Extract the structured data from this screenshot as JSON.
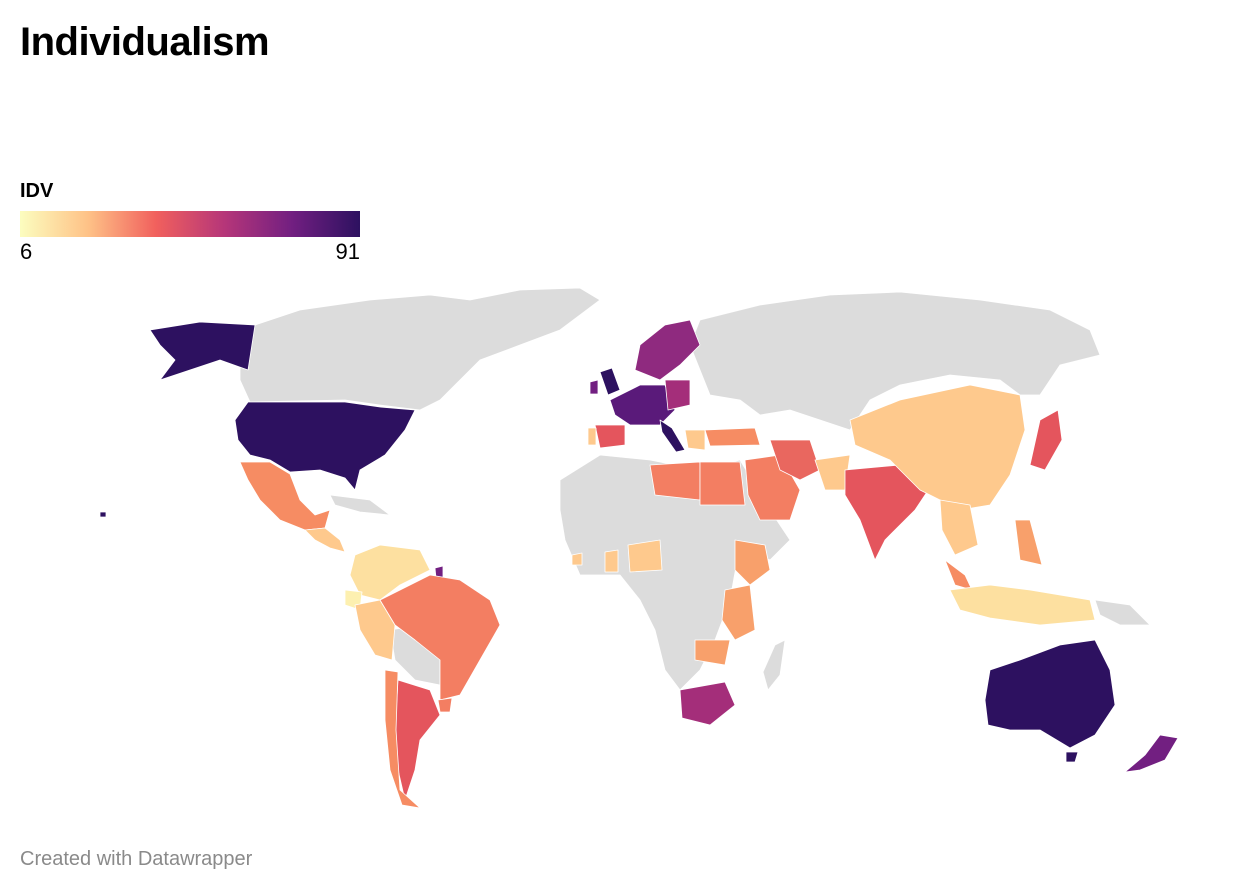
{
  "title": "Individualism",
  "legend": {
    "title": "IDV",
    "min_label": "6",
    "max_label": "91",
    "min": 6,
    "max": 91,
    "stops": [
      "#fcfdbf",
      "#fec287",
      "#f1605d",
      "#b63679",
      "#721f81",
      "#2d1160"
    ]
  },
  "no_data_color": "#dcdcdc",
  "footer": "Created with Datawrapper"
}
